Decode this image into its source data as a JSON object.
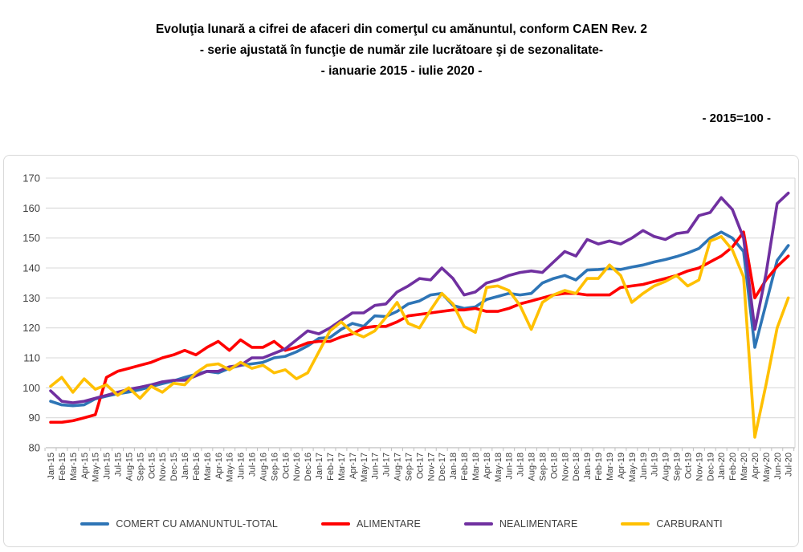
{
  "title": {
    "line1": "Evoluţia lunară a cifrei de afaceri din comerţul cu amănuntul,  conform CAEN Rev. 2",
    "line2": "- serie ajustată în funcţie de număr zile lucrătoare şi de sezonalitate-",
    "line3": "- ianuarie 2015 -  iulie 2020  -"
  },
  "subtitle": "- 2015=100 -",
  "colors": {
    "total": "#2E75B6",
    "alimentare": "#FF0000",
    "nealimentare": "#7030A0",
    "carburanti": "#FFC000",
    "grid": "#D9D9D9",
    "axis": "#BFBFBF",
    "label": "#404040"
  },
  "legend": [
    {
      "label": "COMERT CU AMANUNTUL-TOTAL",
      "color": "#2E75B6"
    },
    {
      "label": "ALIMENTARE",
      "color": "#FF0000"
    },
    {
      "label": "NEALIMENTARE",
      "color": "#7030A0"
    },
    {
      "label": "CARBURANTI",
      "color": "#FFC000"
    }
  ],
  "chart_data": {
    "type": "line",
    "title": "Evoluţia lunară a cifrei de afaceri din comerţul cu amănuntul, conform CAEN Rev. 2 - serie ajustată - ianuarie 2015 - iulie 2020 - 2015=100",
    "xlabel": "",
    "ylabel": "",
    "ylim": [
      80,
      170
    ],
    "ytick_step": 10,
    "grid": true,
    "legend_position": "bottom",
    "x": [
      "Jan-15",
      "Feb-15",
      "Mar-15",
      "Apr-15",
      "May-15",
      "Jun-15",
      "Jul-15",
      "Aug-15",
      "Sep-15",
      "Oct-15",
      "Nov-15",
      "Dec-15",
      "Jan-16",
      "Feb-16",
      "Mar-16",
      "Apr-16",
      "May-16",
      "Jun-16",
      "Jul-16",
      "Aug-16",
      "Sep-16",
      "Oct-16",
      "Nov-16",
      "Dec-16",
      "Jan-17",
      "Feb-17",
      "Mar-17",
      "Apr-17",
      "May-17",
      "Jun-17",
      "Jul-17",
      "Aug-17",
      "Sep-17",
      "Oct-17",
      "Nov-17",
      "Dec-17",
      "Jan-18",
      "Feb-18",
      "Mar-18",
      "Apr-18",
      "May-18",
      "Jun-18",
      "Jul-18",
      "Aug-18",
      "Sep-18",
      "Oct-18",
      "Nov-18",
      "Dec-18",
      "Jan-19",
      "Feb-19",
      "Mar-19",
      "Apr-19",
      "May-19",
      "Jun-19",
      "Jul-19",
      "Aug-19",
      "Sep-19",
      "Oct-19",
      "Nov-19",
      "Dec-19",
      "Jan-20",
      "Feb-20",
      "Mar-20",
      "Apr-20",
      "May-20",
      "Jun-20",
      "Jul-20"
    ],
    "series": [
      {
        "name": "COMERT CU AMANUNTUL-TOTAL",
        "color": "#2E75B6",
        "values": [
          95.5,
          94.3,
          94.0,
          94.3,
          96.3,
          97.2,
          98.0,
          98.6,
          99.4,
          100.4,
          101.4,
          102.3,
          103.5,
          104.5,
          105.5,
          105.0,
          106.5,
          107.5,
          108.0,
          108.5,
          110.0,
          110.5,
          112.0,
          114.0,
          116.5,
          116.8,
          119.5,
          121.5,
          120.5,
          124.0,
          123.8,
          125.5,
          128.0,
          129.0,
          131.0,
          131.5,
          127.5,
          126.5,
          127.0,
          129.5,
          130.5,
          131.5,
          131.0,
          131.5,
          135.0,
          136.5,
          137.5,
          136.0,
          139.3,
          139.5,
          139.8,
          139.5,
          140.3,
          141.0,
          142.0,
          142.8,
          143.8,
          145.0,
          146.5,
          150.0,
          152.0,
          150.0,
          145.5,
          113.5,
          128.0,
          142.5,
          147.5
        ]
      },
      {
        "name": "ALIMENTARE",
        "color": "#FF0000",
        "values": [
          88.5,
          88.5,
          89.0,
          90.0,
          91.0,
          103.5,
          105.5,
          106.5,
          107.5,
          108.5,
          110.0,
          111.0,
          112.5,
          111.0,
          113.5,
          115.5,
          112.5,
          116.0,
          113.5,
          113.5,
          115.5,
          112.5,
          113.5,
          115.0,
          115.5,
          115.5,
          117.0,
          118.0,
          120.0,
          120.5,
          120.5,
          122.0,
          124.0,
          124.5,
          125.0,
          125.5,
          126.0,
          126.0,
          126.5,
          125.5,
          125.5,
          126.5,
          128.0,
          129.0,
          130.0,
          131.0,
          131.5,
          131.5,
          131.0,
          131.0,
          131.0,
          133.5,
          134.0,
          134.5,
          135.5,
          136.5,
          137.5,
          139.0,
          140.0,
          142.0,
          144.0,
          147.0,
          152.0,
          130.0,
          136.0,
          140.5,
          144.0
        ]
      },
      {
        "name": "NEALIMENTARE",
        "color": "#7030A0",
        "values": [
          99.0,
          95.5,
          95.0,
          95.5,
          96.5,
          97.5,
          98.5,
          99.5,
          100.2,
          101.0,
          102.0,
          102.5,
          102.5,
          104.0,
          105.5,
          105.5,
          107.0,
          107.5,
          110.0,
          110.0,
          111.5,
          113.0,
          116.0,
          119.0,
          118.0,
          120.0,
          122.5,
          125.0,
          125.0,
          127.5,
          128.0,
          132.0,
          134.0,
          136.5,
          136.0,
          140.0,
          136.5,
          131.0,
          132.0,
          135.0,
          136.0,
          137.5,
          138.5,
          139.0,
          138.5,
          142.0,
          145.5,
          144.0,
          149.5,
          148.0,
          149.0,
          148.0,
          150.0,
          152.5,
          150.5,
          149.5,
          151.5,
          152.0,
          157.5,
          158.5,
          163.5,
          159.5,
          150.0,
          119.5,
          138.0,
          161.5,
          165.0
        ]
      },
      {
        "name": "CARBURANTI",
        "color": "#FFC000",
        "values": [
          100.5,
          103.5,
          98.5,
          103.0,
          99.5,
          101.0,
          97.5,
          100.0,
          96.5,
          100.5,
          98.5,
          101.5,
          101.0,
          105.0,
          107.5,
          108.0,
          106.0,
          108.5,
          106.5,
          107.5,
          105.0,
          106.0,
          103.0,
          105.0,
          112.0,
          119.0,
          122.0,
          118.5,
          117.0,
          119.0,
          123.5,
          128.5,
          121.5,
          120.0,
          126.0,
          131.5,
          128.0,
          120.5,
          118.5,
          133.5,
          134.0,
          132.5,
          127.5,
          119.5,
          128.5,
          131.0,
          132.5,
          131.5,
          136.5,
          136.5,
          141.0,
          137.5,
          128.5,
          131.5,
          134.0,
          135.5,
          137.5,
          134.0,
          136.0,
          149.0,
          150.5,
          146.0,
          137.0,
          83.5,
          101.0,
          120.0,
          130.0
        ]
      }
    ]
  }
}
